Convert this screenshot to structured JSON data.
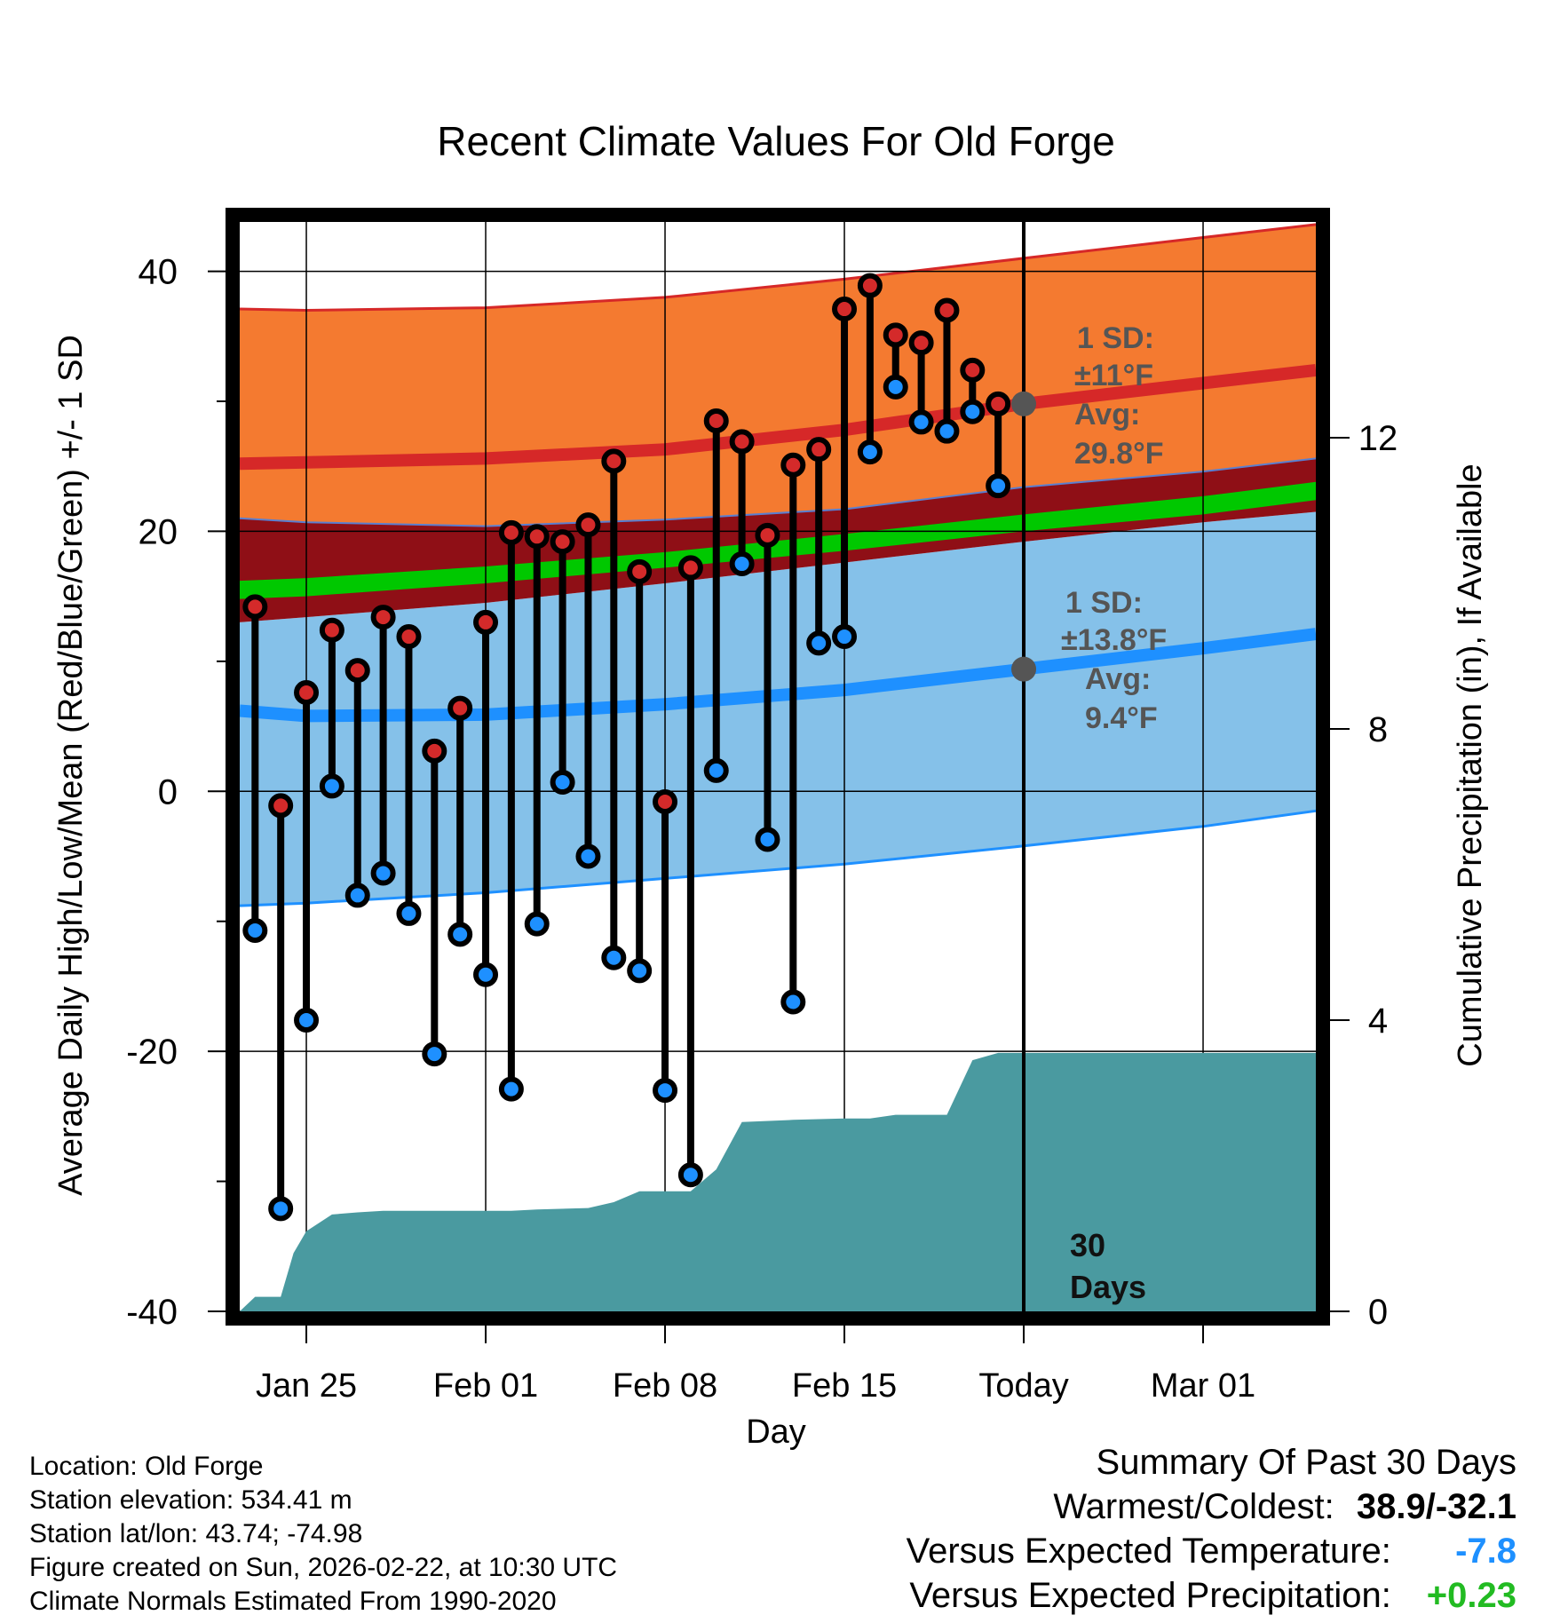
{
  "chart_data": {
    "type": "line",
    "title": "Recent Climate Values For Old Forge",
    "xlabel": "Day",
    "ylabel": "Average Daily High/Low/Mean (Red/Blue/Green) +/- 1 SD",
    "y2label": "Cumulative Precipitation (in), If Available",
    "ylim": [
      -40,
      44
    ],
    "y2lim": [
      0,
      15
    ],
    "xlim": [
      -30.6,
      11.4
    ],
    "x_unit": "days relative to today",
    "x_ticks": [
      {
        "label": "Jan 25",
        "day": -28
      },
      {
        "label": "Feb 01",
        "day": -21
      },
      {
        "label": "Feb 08",
        "day": -14
      },
      {
        "label": "Feb 15",
        "day": -7
      },
      {
        "label": "Today",
        "day": 0
      },
      {
        "label": "Mar 01",
        "day": 7
      }
    ],
    "y_ticks": [
      -40,
      -20,
      0,
      20,
      40
    ],
    "y2_ticks": [
      0,
      4,
      8,
      12
    ],
    "normals": {
      "days": [
        -30.6,
        -28,
        -21,
        -14,
        -7,
        0,
        7,
        11.4
      ],
      "high_mean": [
        25.2,
        25.3,
        25.6,
        26.3,
        27.8,
        29.8,
        31.4,
        32.4
      ],
      "high_upper": [
        37.1,
        37.0,
        37.2,
        38.0,
        39.4,
        41.0,
        42.6,
        43.6
      ],
      "high_lower": [
        21.0,
        20.7,
        20.4,
        20.9,
        21.7,
        23.4,
        24.6,
        25.6
      ],
      "mean_lower": [
        14.8,
        15.0,
        16.0,
        17.2,
        18.5,
        20.0,
        21.3,
        22.4
      ],
      "mean_upper": [
        16.2,
        16.4,
        17.3,
        18.4,
        19.8,
        21.3,
        22.7,
        23.8
      ],
      "low_mean": [
        6.2,
        5.8,
        5.9,
        6.7,
        7.8,
        9.4,
        11.0,
        12.1
      ],
      "low_upper": [
        13.0,
        13.4,
        14.5,
        16.0,
        17.6,
        19.2,
        20.7,
        21.5
      ],
      "low_lower": [
        -8.8,
        -8.6,
        -7.8,
        -6.7,
        -5.6,
        -4.2,
        -2.7,
        -1.5
      ]
    },
    "series": [
      {
        "name": "High",
        "color": "#d42a2a",
        "values": [
          14.2,
          -1.1,
          7.6,
          12.4,
          9.3,
          13.4,
          11.9,
          3.1,
          6.4,
          13.0,
          19.9,
          19.6,
          19.2,
          20.5,
          25.4,
          16.9,
          -0.8,
          17.2,
          28.5,
          26.9,
          19.7,
          25.1,
          26.3,
          37.1,
          38.9,
          35.1,
          34.5,
          37.0,
          32.4,
          29.8
        ]
      },
      {
        "name": "Low",
        "color": "#1e90ff",
        "values": [
          -10.7,
          -32.1,
          -17.6,
          0.4,
          -8.0,
          -6.3,
          -9.4,
          -20.2,
          -11.0,
          -14.1,
          -22.9,
          -10.2,
          0.7,
          -5.0,
          -12.8,
          -13.8,
          -23.0,
          -29.5,
          1.6,
          17.5,
          -3.7,
          -16.2,
          11.4,
          11.9,
          26.1,
          31.1,
          28.4,
          27.7,
          29.2,
          23.5
        ]
      }
    ],
    "days": [
      -30,
      -29,
      -28,
      -27,
      -26,
      -25,
      -24,
      -23,
      -22,
      -21,
      -20,
      -19,
      -18,
      -17,
      -16,
      -15,
      -14,
      -13,
      -12,
      -11,
      -10,
      -9,
      -8,
      -7,
      -6,
      -5,
      -4,
      -3,
      -2,
      -1
    ],
    "precip_days": [
      -30.6,
      -30,
      -29,
      -28.5,
      -28,
      -27,
      -26,
      -25,
      -24,
      -21,
      -20,
      -19,
      -17,
      -16,
      -15,
      -14,
      -13,
      -12,
      -11,
      -9,
      -7,
      -6,
      -5,
      -4,
      -3,
      -2,
      -1,
      0,
      11.4
    ],
    "precip_cum": [
      0.0,
      0.2,
      0.2,
      0.8,
      1.1,
      1.33,
      1.36,
      1.38,
      1.38,
      1.38,
      1.38,
      1.4,
      1.42,
      1.5,
      1.65,
      1.65,
      1.65,
      1.95,
      2.6,
      2.63,
      2.65,
      2.65,
      2.7,
      2.7,
      2.7,
      3.45,
      3.55,
      3.55,
      3.55
    ],
    "annotations": {
      "high_sd": "1 SD:",
      "high_sd_value": "±11°F",
      "high_avg_label": "Avg:",
      "high_avg_value": "29.8°F",
      "high_avg": 29.8,
      "low_sd": "1 SD:",
      "low_sd_value": "±13.8°F",
      "low_avg_label": "Avg:",
      "low_avg_value": "9.4°F",
      "low_avg": 9.4,
      "days_num": "30",
      "days_word": "Days"
    },
    "colors": {
      "high_band": "#f47a30",
      "high_line": "#d62828",
      "high_lower_band": "#8f0f16",
      "mean_band": "#00c800",
      "low_band": "#85c1e9",
      "low_line": "#1e90ff",
      "precip": "#4a9aa0",
      "avg_dot": "#555555"
    }
  },
  "footer": {
    "location": "Location: Old Forge",
    "elevation": "Station elevation: 534.41 m",
    "latlon": "Station lat/lon: 43.74; -74.98",
    "created": "Figure created on Sun, 2026-02-22, at 10:30 UTC",
    "normals": "Climate Normals Estimated From 1990-2020"
  },
  "summary": {
    "title": "Summary Of Past 30 Days",
    "warm_cold_label": "Warmest/Coldest:",
    "warm_cold_value": "38.9/-32.1",
    "temp_label": "Versus Expected Temperature:",
    "temp_value": "-7.8",
    "temp_color": "#1e90ff",
    "precip_label": "Versus Expected Precipitation:",
    "precip_value": "+0.23",
    "precip_color": "#22bb22"
  }
}
